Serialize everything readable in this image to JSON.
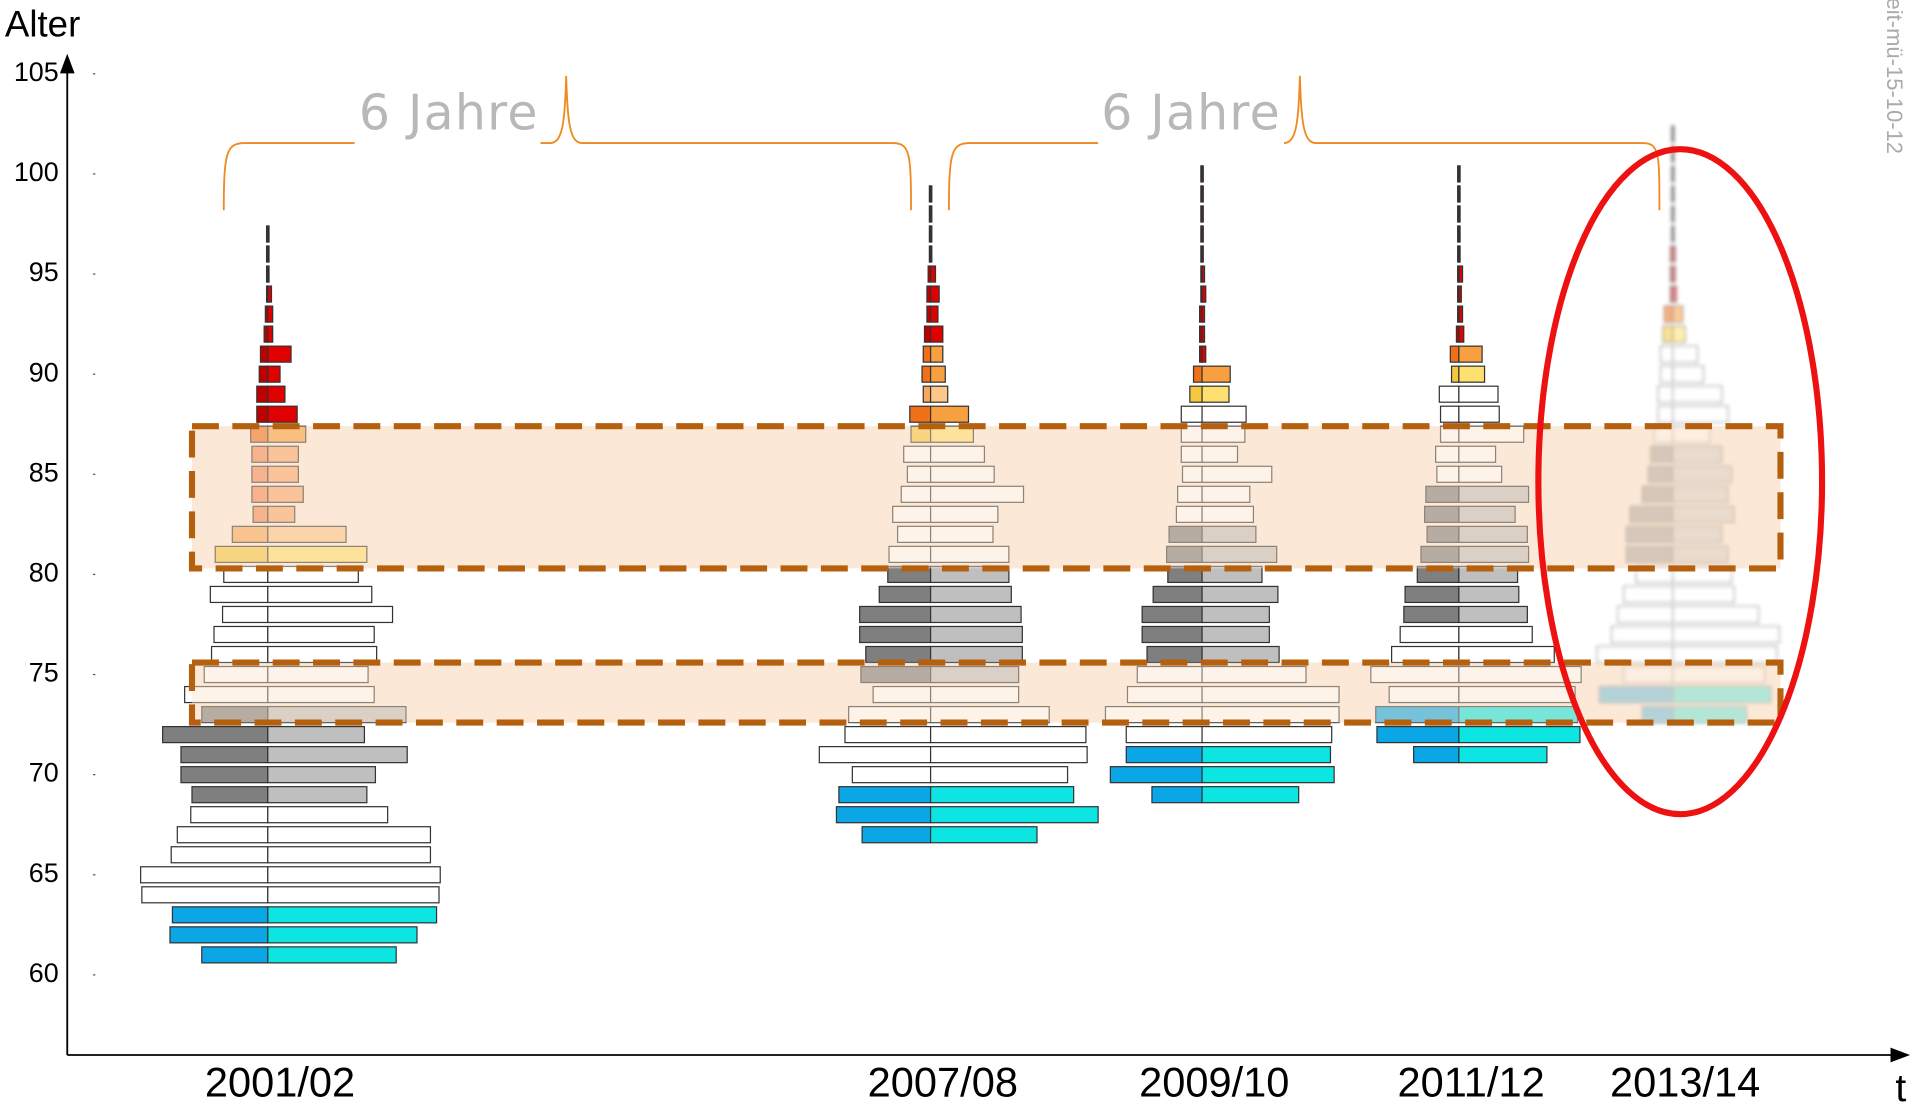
{
  "chart_data": {
    "type": "pyramid",
    "y_label": "Alter",
    "x_label": "t",
    "ylim": [
      56,
      106
    ],
    "yticks": [
      60,
      65,
      70,
      75,
      80,
      85,
      90,
      95,
      100,
      105
    ],
    "annotations": [
      "6 Jahre",
      "6 Jahre"
    ],
    "watermark": "eit-mü-15-10-12",
    "highlight_ranges": [
      [
        80.3,
        87.4
      ],
      [
        72.6,
        75.6
      ]
    ],
    "palette": {
      "b": [
        "#0aa6e6",
        "#0de5e2"
      ],
      "w": [
        "#ffffff",
        "#ffffff"
      ],
      "g": [
        "#7f7f7f",
        "#bfbfbf"
      ],
      "y": [
        "#f5c842",
        "#fde070"
      ],
      "p": [
        "#f7a85a",
        "#fbc88a"
      ],
      "s": [
        "#f28a5a",
        "#f9a870"
      ],
      "o": [
        "#f07018",
        "#f8a040"
      ],
      "r": [
        "#c00000",
        "#e00000"
      ]
    },
    "pyramids": [
      {
        "label": "2001/02",
        "ages": [
          61,
          62,
          63,
          64,
          65,
          66,
          67,
          68,
          69,
          70,
          71,
          72,
          73,
          74,
          75,
          76,
          77,
          78,
          79,
          80,
          81,
          82,
          83,
          84,
          85,
          86,
          87,
          88,
          89,
          90,
          91,
          92,
          93,
          94,
          95,
          96,
          97
        ],
        "male": [
          54,
          80,
          78,
          103,
          104,
          79,
          74,
          63,
          62,
          71,
          71,
          86,
          54,
          68,
          52,
          46,
          44,
          37,
          47,
          36,
          43,
          29,
          12,
          13,
          13,
          13,
          14,
          9,
          9,
          7,
          6,
          3,
          2,
          1,
          1,
          1,
          1
        ],
        "female": [
          105,
          122,
          138,
          140,
          141,
          133,
          133,
          98,
          81,
          88,
          114,
          79,
          113,
          87,
          82,
          89,
          87,
          102,
          85,
          74,
          81,
          64,
          22,
          29,
          25,
          25,
          31,
          24,
          14,
          10,
          19,
          4,
          4,
          3,
          1,
          1,
          1
        ],
        "colors": [
          "b",
          "b",
          "b",
          "w",
          "w",
          "w",
          "w",
          "w",
          "g",
          "g",
          "g",
          "g",
          "g",
          "w",
          "w",
          "w",
          "w",
          "w",
          "w",
          "w",
          "y",
          "p",
          "s",
          "s",
          "s",
          "s",
          "o",
          "r",
          "r",
          "r",
          "r",
          "r",
          "r",
          "r",
          "r",
          "r",
          "r"
        ]
      },
      {
        "label": "2007/08",
        "ages": [
          67,
          68,
          69,
          70,
          71,
          72,
          73,
          74,
          75,
          76,
          77,
          78,
          79,
          80,
          81,
          82,
          83,
          84,
          85,
          86,
          87,
          88,
          89,
          90,
          91,
          92,
          93,
          94,
          95,
          96,
          97,
          98,
          99
        ],
        "male": [
          56,
          77,
          75,
          64,
          91,
          70,
          67,
          47,
          57,
          53,
          58,
          58,
          42,
          35,
          34,
          27,
          31,
          24,
          19,
          22,
          16,
          17,
          6,
          7,
          6,
          5,
          3,
          3,
          2,
          1,
          1,
          1,
          1
        ],
        "female": [
          87,
          137,
          117,
          112,
          128,
          127,
          97,
          72,
          72,
          75,
          75,
          74,
          66,
          64,
          64,
          51,
          55,
          76,
          52,
          44,
          35,
          31,
          14,
          12,
          10,
          10,
          6,
          7,
          4,
          1,
          1,
          1,
          1
        ],
        "colors": [
          "b",
          "b",
          "b",
          "w",
          "w",
          "w",
          "w",
          "w",
          "g",
          "g",
          "g",
          "g",
          "g",
          "g",
          "w",
          "w",
          "w",
          "w",
          "w",
          "w",
          "y",
          "o",
          "p",
          "o",
          "o",
          "r",
          "r",
          "r",
          "r",
          "r",
          "r",
          "r",
          "r"
        ]
      },
      {
        "label": "2009/10",
        "ages": [
          69,
          70,
          71,
          72,
          73,
          74,
          75,
          76,
          77,
          78,
          79,
          80,
          81,
          82,
          83,
          84,
          85,
          86,
          87,
          88,
          89,
          90,
          91,
          92,
          93,
          94,
          95,
          96,
          97,
          98,
          99,
          100
        ],
        "male": [
          41,
          75,
          62,
          62,
          79,
          61,
          53,
          45,
          49,
          49,
          40,
          28,
          29,
          27,
          21,
          20,
          16,
          17,
          17,
          17,
          10,
          7,
          2,
          2,
          2,
          1,
          1,
          1,
          1,
          1,
          1,
          1
        ],
        "female": [
          79,
          108,
          105,
          106,
          112,
          112,
          85,
          63,
          55,
          55,
          62,
          49,
          61,
          44,
          42,
          39,
          57,
          29,
          35,
          36,
          22,
          23,
          3,
          2,
          2,
          3,
          2,
          1,
          1,
          1,
          1,
          1
        ],
        "colors": [
          "b",
          "b",
          "b",
          "w",
          "w",
          "w",
          "w",
          "g",
          "g",
          "g",
          "g",
          "g",
          "g",
          "g",
          "w",
          "w",
          "w",
          "w",
          "w",
          "w",
          "y",
          "o",
          "r",
          "r",
          "r",
          "r",
          "r",
          "r",
          "r",
          "r",
          "r",
          "r"
        ]
      },
      {
        "label": "2011/12",
        "ages": [
          71,
          72,
          73,
          74,
          75,
          76,
          77,
          78,
          79,
          80,
          81,
          82,
          83,
          84,
          85,
          86,
          87,
          88,
          89,
          90,
          91,
          92,
          93,
          94,
          95,
          96,
          97,
          98,
          99,
          100
        ],
        "male": [
          37,
          67,
          68,
          57,
          72,
          55,
          48,
          45,
          44,
          34,
          31,
          26,
          28,
          27,
          18,
          19,
          15,
          15,
          16,
          6,
          7,
          2,
          1,
          1,
          1,
          1,
          1,
          1,
          1,
          1
        ],
        "female": [
          72,
          99,
          97,
          95,
          100,
          78,
          60,
          56,
          49,
          48,
          57,
          56,
          46,
          57,
          35,
          30,
          53,
          33,
          32,
          21,
          19,
          4,
          3,
          2,
          3,
          1,
          1,
          1,
          1,
          1
        ],
        "colors": [
          "b",
          "b",
          "b",
          "w",
          "w",
          "w",
          "w",
          "g",
          "g",
          "g",
          "g",
          "g",
          "g",
          "g",
          "w",
          "w",
          "w",
          "w",
          "w",
          "y",
          "o",
          "r",
          "r",
          "r",
          "r",
          "r",
          "r",
          "r",
          "r",
          "r"
        ]
      },
      {
        "label": "2013/14",
        "ages": [
          73,
          74,
          75,
          76,
          77,
          78,
          79,
          80,
          81,
          82,
          83,
          84,
          85,
          86,
          87,
          88,
          89,
          90,
          91,
          92,
          93,
          94,
          95,
          96,
          97,
          98,
          99,
          100,
          101,
          102
        ],
        "male": [
          25,
          60,
          40,
          62,
          50,
          45,
          40,
          30,
          38,
          38,
          35,
          25,
          20,
          18,
          15,
          12,
          12,
          10,
          10,
          8,
          7,
          2,
          2,
          2,
          1,
          1,
          1,
          1,
          1,
          1
        ],
        "female": [
          60,
          80,
          75,
          85,
          87,
          70,
          50,
          48,
          45,
          40,
          50,
          45,
          48,
          40,
          30,
          45,
          40,
          25,
          20,
          10,
          8,
          3,
          2,
          2,
          1,
          1,
          1,
          1,
          1,
          1
        ],
        "colors": [
          "b",
          "b",
          "w",
          "w",
          "w",
          "w",
          "w",
          "w",
          "g",
          "g",
          "g",
          "g",
          "g",
          "g",
          "w",
          "w",
          "w",
          "w",
          "w",
          "y",
          "o",
          "r",
          "r",
          "r",
          "r",
          "r",
          "r",
          "r",
          "r",
          "r"
        ]
      }
    ]
  }
}
